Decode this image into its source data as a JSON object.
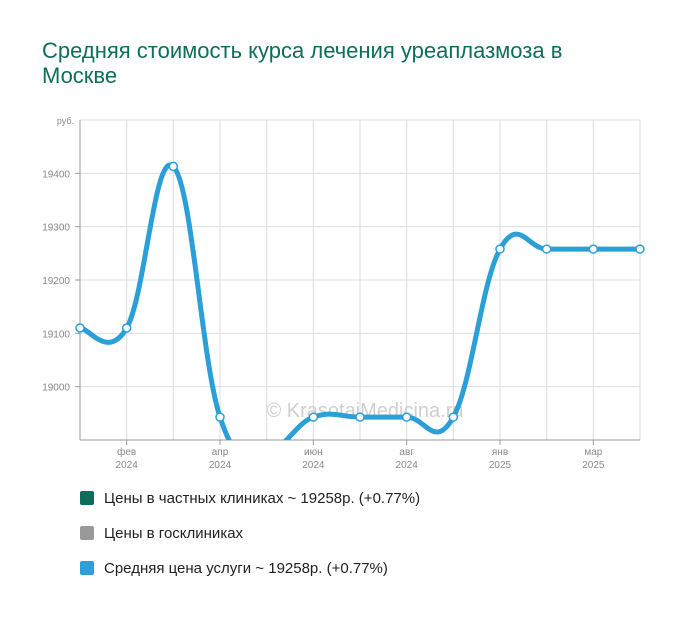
{
  "colors": {
    "title": "#0e6e5c",
    "series_line": "#2a9fd8",
    "grid": "#dddddd",
    "axis_text": "#888888",
    "private": "#0e6e5c",
    "state": "#999999",
    "average": "#2a9fd8"
  },
  "watermark": "© KrasotaiMedicina.ru",
  "chart_data": {
    "type": "line",
    "title": "Средняя стоимость курса лечения уреаплазмоза в Москве",
    "y_unit_label": "руб.",
    "ylim": [
      18900,
      19500
    ],
    "yticks": [
      19000,
      19100,
      19200,
      19300,
      19400
    ],
    "grid": true,
    "x_ticks": [
      {
        "month": "фев",
        "year": "2024",
        "i": 1
      },
      {
        "month": "апр",
        "year": "2024",
        "i": 3
      },
      {
        "month": "июн",
        "year": "2024",
        "i": 5
      },
      {
        "month": "авг",
        "year": "2024",
        "i": 7
      },
      {
        "month": "янв",
        "year": "2025",
        "i": 9
      },
      {
        "month": "мар",
        "year": "2025",
        "i": 11
      }
    ],
    "series": [
      {
        "name": "Средняя цена услуги",
        "values": [
          19110,
          19110,
          19413,
          18943,
          18880,
          18943,
          18943,
          18943,
          18943,
          19258,
          19258,
          19258,
          19258
        ]
      }
    ],
    "legend_position": "bottom"
  },
  "legend": [
    {
      "label": "Цены в частных клиниках ~ 19258р. (+0.77%)",
      "color": "#0e6e5c"
    },
    {
      "label": "Цены в госклиниках",
      "color": "#999999"
    },
    {
      "label": "Средняя цена услуги ~ 19258р. (+0.77%)",
      "color": "#2a9fd8"
    }
  ]
}
